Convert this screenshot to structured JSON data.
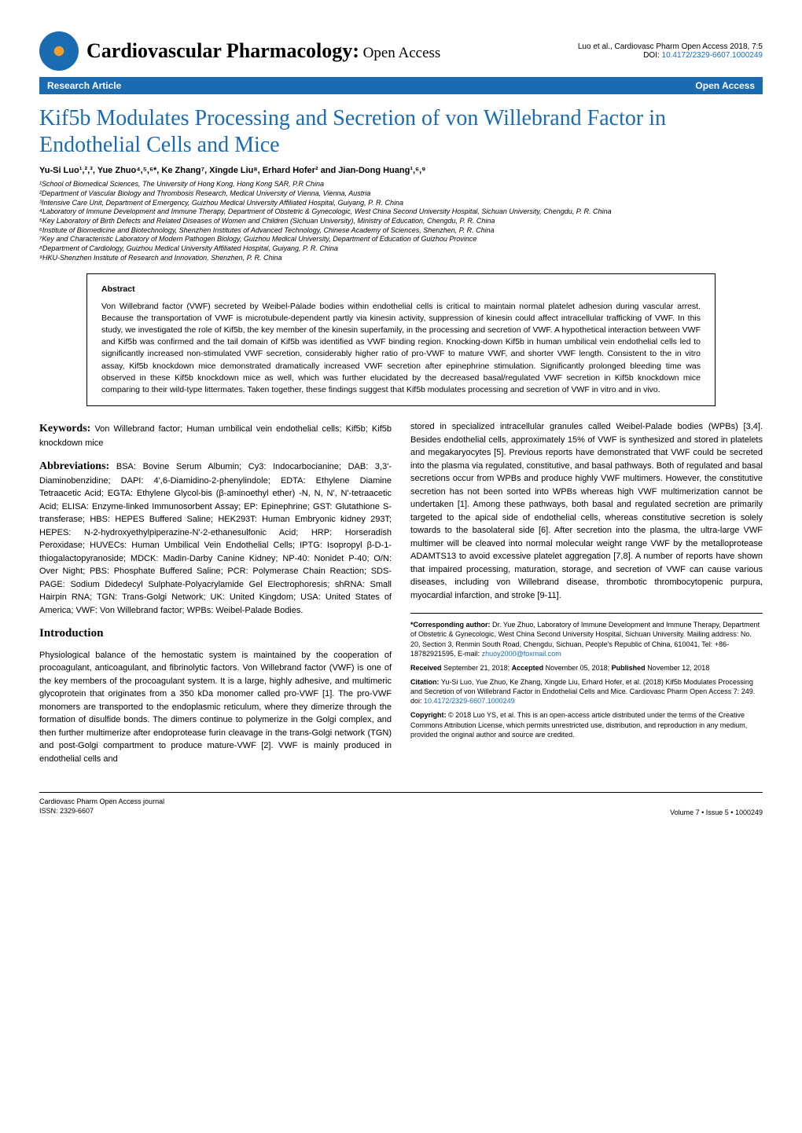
{
  "colors": {
    "brand_blue": "#1a6bb0",
    "text": "#000000",
    "background": "#ffffff",
    "logo_orange": "#f0a030"
  },
  "typography": {
    "serif_family": "Georgia, 'Times New Roman', serif",
    "sans_family": "Arial, Helvetica, sans-serif",
    "journal_name_size": 26,
    "journal_sub_size": 19,
    "article_title_size": 28,
    "body_size": 11,
    "affiliation_size": 9,
    "abstract_size": 10.5,
    "footer_size": 9
  },
  "header": {
    "journal_name": "Cardiovascular Pharmacology:",
    "journal_sub": " Open Access",
    "issn_badge": "ISSN: 2329-6607",
    "citation_top": "Luo et al., Cardiovasc Pharm Open Access 2018, 7:5",
    "doi_label": "DOI: ",
    "doi": "10.4172/2329-6607.1000249"
  },
  "section_bar": {
    "left": "Research Article",
    "right": "Open Access"
  },
  "article": {
    "title": "Kif5b Modulates Processing and Secretion of von Willebrand Factor in Endothelial Cells and Mice",
    "authors": "Yu-Si Luo¹,²,³, Yue Zhuo⁴,⁵,⁶*, Ke Zhang⁷, Xingde Liu⁸,  Erhard Hofer² and Jian-Dong Huang¹,⁶,⁹",
    "affiliations": [
      "¹School of Biomedical Sciences, The University of Hong Kong, Hong Kong SAR, P.R China",
      "²Department of Vascular Biology and Thrombosis Research, Medical University of Vienna, Vienna, Austria",
      "³Intensive Care Unit, Department of Emergency, Guizhou Medical University Affiliated Hospital, Guiyang, P. R. China",
      "⁴Laboratory of Immune Development and Immune Therapy, Department of Obstetric & Gynecologic, West China Second University Hospital, Sichuan University, Chengdu, P. R. China",
      "⁵Key Laboratory of Birth Defects and Related Diseases of Women and Children (Sichuan University), Ministry of Education, Chengdu, P. R. China",
      "⁶Institute of Biomedicine and Biotechnology, Shenzhen Institutes of Advanced Technology, Chinese Academy of Sciences, Shenzhen, P. R. China",
      "⁷Key and Characteristic Laboratory of Modern Pathogen Biology, Guizhou Medical University, Department of Education of Guizhou Province",
      "⁸Department of Cardiology, Guizhou Medical University Affiliated Hospital, Guiyang, P. R. China",
      "⁹HKU-Shenzhen Institute of Research and Innovation, Shenzhen, P. R. China"
    ]
  },
  "abstract": {
    "heading": "Abstract",
    "text": "Von Willebrand factor (VWF) secreted by Weibel-Palade bodies within endothelial cells is critical to maintain normal platelet adhesion during vascular arrest. Because the transportation of VWF is microtubule-dependent partly via kinesin activity, suppression of kinesin could affect intracellular trafficking of VWF. In this study, we investigated the role of Kif5b, the key member of the kinesin superfamily, in the processing and secretion of VWF. A hypothetical interaction between VWF and Kif5b was confirmed and the tail domain of Kif5b was identified as VWF binding region. Knocking-down Kif5b in human umbilical vein endothelial cells led to significantly increased non-stimulated VWF secretion, considerably higher ratio of pro-VWF to mature VWF, and shorter VWF length. Consistent to the in vitro assay, Kif5b knockdown mice demonstrated dramatically increased VWF secretion after epinephrine stimulation. Significantly prolonged bleeding time was observed in these Kif5b knockdown mice as well, which was further elucidated by the decreased basal/regulated VWF secretion in Kif5b knockdown mice comparing to their wild-type littermates. Taken together, these findings suggest that Kif5b modulates processing and secretion of VWF in vitro and in vivo."
  },
  "body": {
    "keywords_label": "Keywords:",
    "keywords_text": " Von Willebrand factor; Human umbilical vein endothelial cells; Kif5b; Kif5b knockdown mice",
    "abbrev_label": "Abbreviations:",
    "abbrev_text": " BSA: Bovine Serum Albumin; Cy3: Indocarbocianine; DAB: 3,3'-Diaminobenzidine; DAPI: 4',6-Diamidino-2-phenylindole; EDTA: Ethylene Diamine Tetraacetic Acid; EGTA: Ethylene Glycol-bis (β-aminoethyl ether) -N, N, N', N'-tetraacetic Acid; ELISA: Enzyme-linked Immunosorbent Assay; EP: Epinephrine; GST: Glutathione S-transferase; HBS: HEPES Buffered Saline; HEK293T: Human Embryonic kidney 293T; HEPES: N-2-hydroxyethylpiperazine-N'-2-ethanesulfonic Acid; HRP: Horseradish Peroxidase; HUVECs: Human Umbilical Vein Endothelial Cells; IPTG: Isopropyl β-D-1-thiogalactopyranoside; MDCK: Madin-Darby Canine Kidney; NP-40: Nonidet P-40; O/N: Over Night; PBS: Phosphate Buffered Saline; PCR: Polymerase Chain Reaction; SDS-PAGE: Sodium Didedecyl Sulphate-Polyacrylamide Gel Electrophoresis; shRNA: Small Hairpin RNA; TGN: Trans-Golgi Network; UK: United Kingdom; USA: United States of America; VWF: Von Willebrand factor; WPBs: Weibel-Palade Bodies.",
    "intro_heading": "Introduction",
    "intro_p1": "Physiological balance of the hemostatic system is maintained by the cooperation of procoagulant, anticoagulant, and fibrinolytic factors. Von Willebrand factor (VWF) is one of the key members of the procoagulant system. It is a large, highly adhesive, and multimeric glycoprotein that originates from a 350 kDa monomer called pro-VWF [1]. The pro-VWF monomers are transported to the endoplasmic reticulum, where they dimerize through the formation of disulfide bonds. The dimers continue to polymerize in the Golgi complex, and then further multimerize after endoprotease furin cleavage in the trans-Golgi network (TGN) and post-Golgi compartment to produce mature-VWF [2]. VWF is mainly produced in endothelial cells and",
    "col2_p1": "stored in specialized intracellular granules called Weibel-Palade bodies (WPBs) [3,4]. Besides endothelial cells, approximately 15% of VWF is synthesized and stored in platelets and megakaryocytes [5]. Previous reports have demonstrated that VWF could be secreted into the plasma via regulated, constitutive, and basal pathways. Both of regulated and basal secretions occur from WPBs and produce highly VWF multimers. However, the constitutive secretion has not been sorted into WPBs whereas high VWF multimerization cannot be undertaken [1]. Among these pathways, both basal and regulated secretion are primarily targeted to the apical side of endothelial cells, whereas constitutive secretion is solely towards to the basolateral side [6]. After secretion into the plasma, the ultra-large VWF multimer will be cleaved into normal molecular weight range VWF by the metalloprotease ADAMTS13 to avoid excessive platelet aggregation [7,8]. A number of reports have shown that impaired processing, maturation, storage, and secretion of VWF can cause various diseases, including von Willebrand disease, thrombotic thrombocytopenic purpura, myocardial infarction, and stroke [9-11]."
  },
  "corr": {
    "author_label": "*Corresponding author:",
    "author_text": " Dr. Yue Zhuo, Laboratory of Immune Development and Immune Therapy, Department of Obstetric & Gynecologic, West China Second University Hospital, Sichuan University. Mailing address: No. 20, Section 3, Renmin South Road, Chengdu, Sichuan, People's Republic of China, 610041, Tel: +86-18782921595, E-mail: ",
    "email": "zhuoy2000@foxmail.com",
    "received_label": "Received",
    "received_text": " September 21, 2018; ",
    "accepted_label": "Accepted",
    "accepted_text": " November 05, 2018; ",
    "published_label": "Published",
    "published_text": " November 12, 2018",
    "citation_label": "Citation:",
    "citation_text": " Yu-Si Luo, Yue Zhuo, Ke Zhang, Xingde Liu,  Erhard Hofer, et al. (2018) Kif5b Modulates Processing and Secretion of von Willebrand Factor in Endothelial Cells and Mice. Cardiovasc Pharm Open Access 7: 249. doi: ",
    "citation_doi": "10.4172/2329-6607.1000249",
    "copyright_label": "Copyright:",
    "copyright_text": " © 2018 Luo YS, et al. This is an open-access article distributed under the terms of the Creative Commons Attribution License, which permits unrestricted use, distribution, and reproduction in any medium, provided the original author and source are credited."
  },
  "footer": {
    "left_line1": "Cardiovasc Pharm Open Access journal",
    "left_line2": "ISSN: 2329-6607",
    "right": "Volume 7 • Issue 5 • 1000249"
  }
}
